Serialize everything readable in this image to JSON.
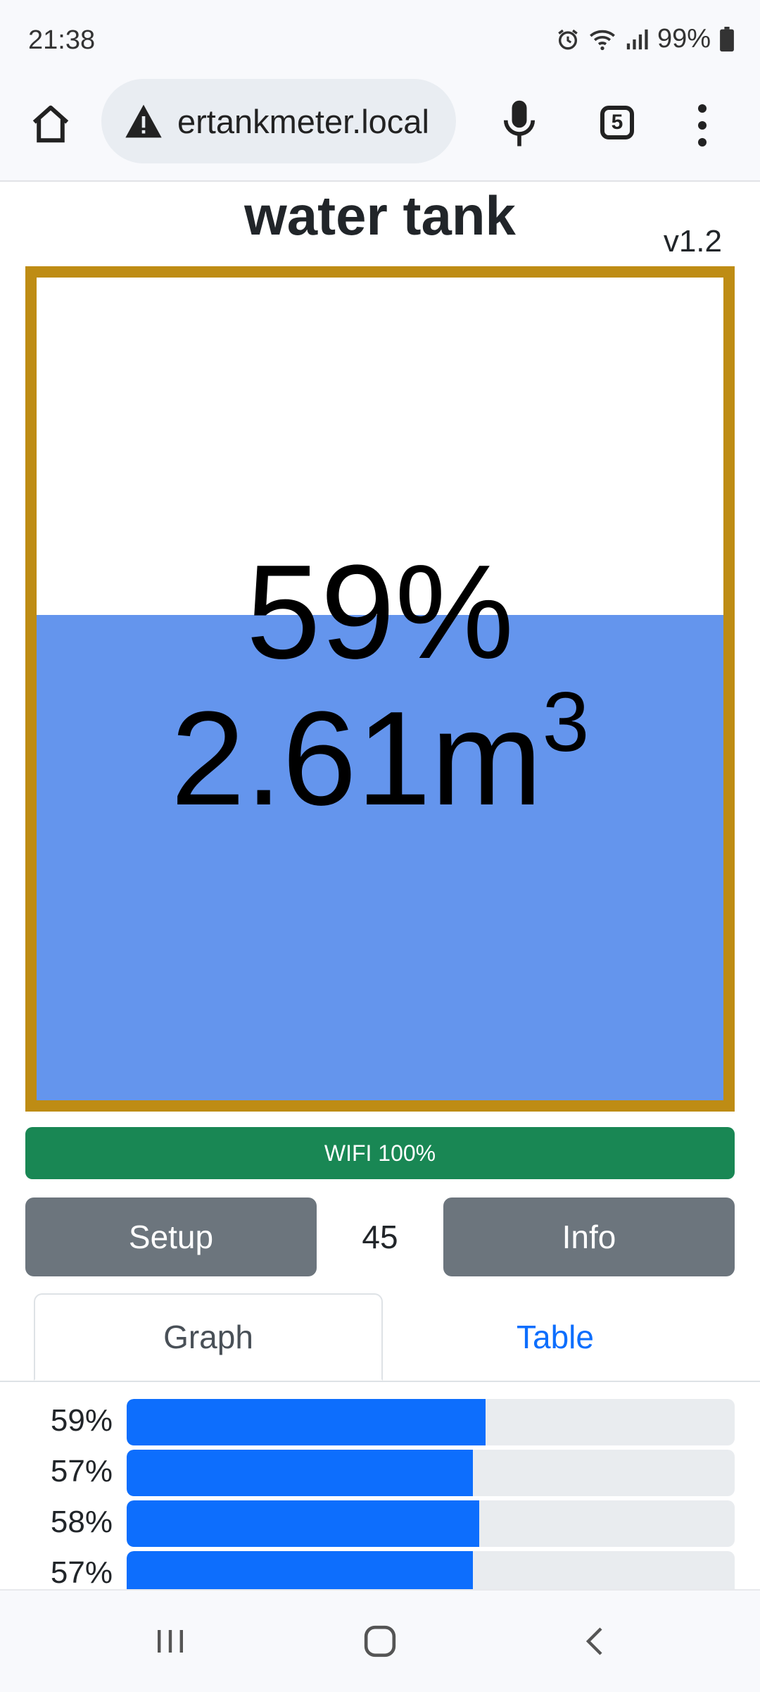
{
  "status_bar": {
    "time": "21:38",
    "battery": "99%"
  },
  "browser": {
    "url": "ertankmeter.local",
    "tab_count": "5"
  },
  "page": {
    "title": "water tank",
    "version": "v1.2",
    "tank": {
      "level_fraction": 0.59,
      "percent_text": "59%",
      "volume_value": "2.61m",
      "volume_unit_sup": "3"
    },
    "wifi_label": "WIFI 100%",
    "setup_label": "Setup",
    "counter": "45",
    "info_label": "Info",
    "tabs": {
      "graph": "Graph",
      "table": "Table"
    },
    "history": [
      {
        "label": "59%",
        "value": 0.59
      },
      {
        "label": "57%",
        "value": 0.57
      },
      {
        "label": "58%",
        "value": 0.58
      },
      {
        "label": "57%",
        "value": 0.57
      }
    ]
  },
  "colors": {
    "tank_border": "#be8c14",
    "water": "#6495ed",
    "wifi": "#198754",
    "button": "#6c757d",
    "bar_fill": "#0d6efd",
    "link": "#0d6efd"
  },
  "icons": {
    "home": "home-icon",
    "warning": "warning-icon",
    "mic": "mic-icon",
    "tabs": "tabs-icon",
    "menu": "more-vert-icon",
    "alarm": "alarm-icon",
    "wifi": "wifi-icon",
    "signal": "signal-icon",
    "battery": "battery-icon",
    "recents": "recents-icon",
    "home_nav": "home-nav-icon",
    "back": "back-icon"
  }
}
